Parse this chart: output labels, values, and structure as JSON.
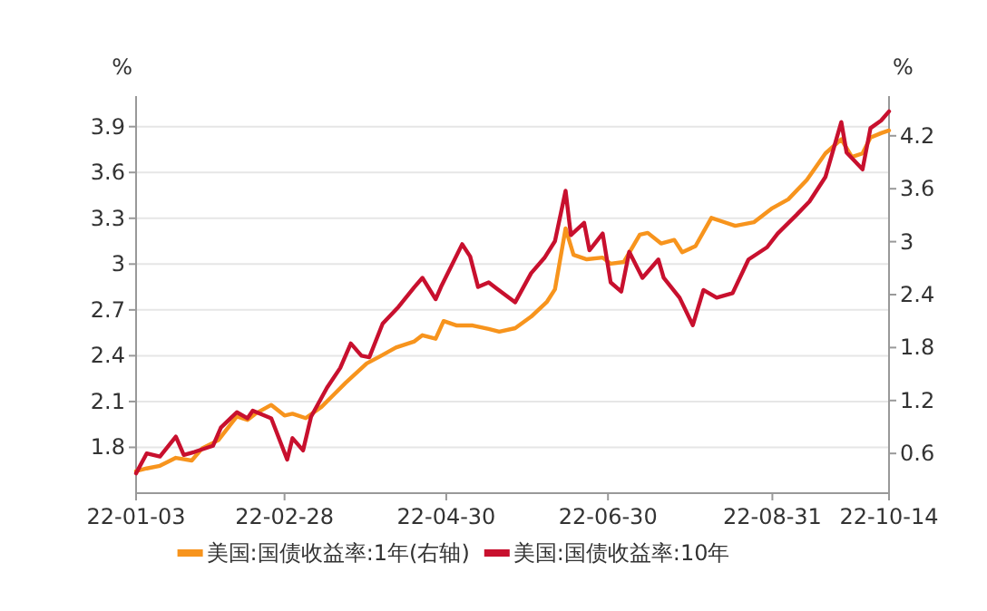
{
  "chart_data": {
    "type": "line",
    "ylabel": "%",
    "y2label": "%",
    "grid": "y",
    "legend": "bottom",
    "xlim": [
      "--01-03",
      "--10-14"
    ],
    "xticks": [
      {
        "value": "--01-03",
        "label": "22-01-03"
      },
      {
        "value": "--02-28",
        "label": "22-02-28"
      },
      {
        "value": "--04-30",
        "label": "22-04-30"
      },
      {
        "value": "--06-30",
        "label": "22-06-30"
      },
      {
        "value": "--08-31",
        "label": "22-08-31"
      },
      {
        "value": "--10-14",
        "label": "22-10-14"
      }
    ],
    "ylim": [
      1.5,
      4.1
    ],
    "yticks": [
      1.8,
      2.1,
      2.4,
      2.7,
      3,
      3.3,
      3.6,
      3.9
    ],
    "y2lim": [
      0.15,
      4.65
    ],
    "y2ticks": [
      0.6,
      1.2,
      1.8,
      2.4,
      3,
      3.6,
      4.2
    ],
    "series": [
      {
        "name": "美国:国债收益率:1年(右轴)",
        "color": "#f7941d",
        "axis": "y2",
        "x": [
          "--01-03",
          "--01-07",
          "--01-12",
          "--01-18",
          "--01-24",
          "--01-28",
          "--02-03",
          "--02-10",
          "--02-14",
          "--02-17",
          "--02-23",
          "--02-28",
          "--03-03",
          "--03-08",
          "--03-14",
          "--03-18",
          "--03-23",
          "--03-31",
          "--04-05",
          "--04-11",
          "--04-18",
          "--04-21",
          "--04-26",
          "--04-29",
          "--05-04",
          "--05-10",
          "--05-16",
          "--05-20",
          "--05-26",
          "--06-01",
          "--06-07",
          "--06-10",
          "--06-14",
          "--06-17",
          "--06-22",
          "--06-28",
          "--07-01",
          "--07-06",
          "--07-12",
          "--07-15",
          "--07-20",
          "--07-25",
          "--07-28",
          "--08-02",
          "--08-08",
          "--08-12",
          "--08-17",
          "--08-24",
          "--08-31",
          "--09-06",
          "--09-13",
          "--09-20",
          "--09-26",
          "--09-30",
          "--10-04",
          "--10-07",
          "--10-11",
          "--10-14"
        ],
        "values": [
          0.4,
          0.43,
          0.46,
          0.55,
          0.52,
          0.66,
          0.75,
          1.02,
          0.98,
          1.05,
          1.15,
          1.03,
          1.05,
          1.0,
          1.13,
          1.25,
          1.4,
          1.62,
          1.7,
          1.8,
          1.87,
          1.94,
          1.9,
          2.1,
          2.05,
          2.05,
          2.01,
          1.98,
          2.02,
          2.15,
          2.32,
          2.46,
          3.15,
          2.85,
          2.8,
          2.82,
          2.75,
          2.77,
          3.08,
          3.1,
          2.98,
          3.02,
          2.88,
          2.95,
          3.27,
          3.23,
          3.18,
          3.22,
          3.38,
          3.48,
          3.7,
          4.0,
          4.16,
          3.96,
          4.0,
          4.18,
          4.23,
          4.26
        ]
      },
      {
        "name": "美国:国债收益率:10年",
        "color": "#c8102e",
        "axis": "y",
        "x": [
          "--01-03",
          "--01-07",
          "--01-12",
          "--01-18",
          "--01-21",
          "--01-25",
          "--02-01",
          "--02-04",
          "--02-10",
          "--02-14",
          "--02-16",
          "--02-23",
          "--03-01",
          "--03-03",
          "--03-07",
          "--03-10",
          "--03-16",
          "--03-21",
          "--03-25",
          "--03-29",
          "--04-01",
          "--04-06",
          "--04-12",
          "--04-18",
          "--04-21",
          "--04-26",
          "--04-28",
          "--05-06",
          "--05-09",
          "--05-12",
          "--05-16",
          "--05-19",
          "--05-26",
          "--06-01",
          "--06-06",
          "--06-10",
          "--06-14",
          "--06-16",
          "--06-21",
          "--06-23",
          "--06-28",
          "--07-01",
          "--07-05",
          "--07-08",
          "--07-13",
          "--07-19",
          "--07-21",
          "--07-27",
          "--08-01",
          "--08-05",
          "--08-10",
          "--08-16",
          "--08-22",
          "--08-29",
          "--09-02",
          "--09-09",
          "--09-14",
          "--09-20",
          "--09-26",
          "--09-28",
          "--10-04",
          "--10-07",
          "--10-11",
          "--10-14"
        ],
        "values": [
          1.63,
          1.76,
          1.74,
          1.87,
          1.75,
          1.77,
          1.81,
          1.93,
          2.03,
          1.99,
          2.04,
          1.99,
          1.72,
          1.86,
          1.78,
          2.0,
          2.19,
          2.32,
          2.48,
          2.4,
          2.39,
          2.61,
          2.72,
          2.85,
          2.91,
          2.77,
          2.85,
          3.13,
          3.05,
          2.85,
          2.88,
          2.84,
          2.75,
          2.94,
          3.04,
          3.15,
          3.48,
          3.19,
          3.27,
          3.09,
          3.2,
          2.88,
          2.82,
          3.08,
          2.91,
          3.03,
          2.91,
          2.78,
          2.6,
          2.83,
          2.78,
          2.81,
          3.03,
          3.11,
          3.2,
          3.32,
          3.41,
          3.57,
          3.93,
          3.73,
          3.62,
          3.89,
          3.94,
          4.0
        ]
      }
    ]
  }
}
